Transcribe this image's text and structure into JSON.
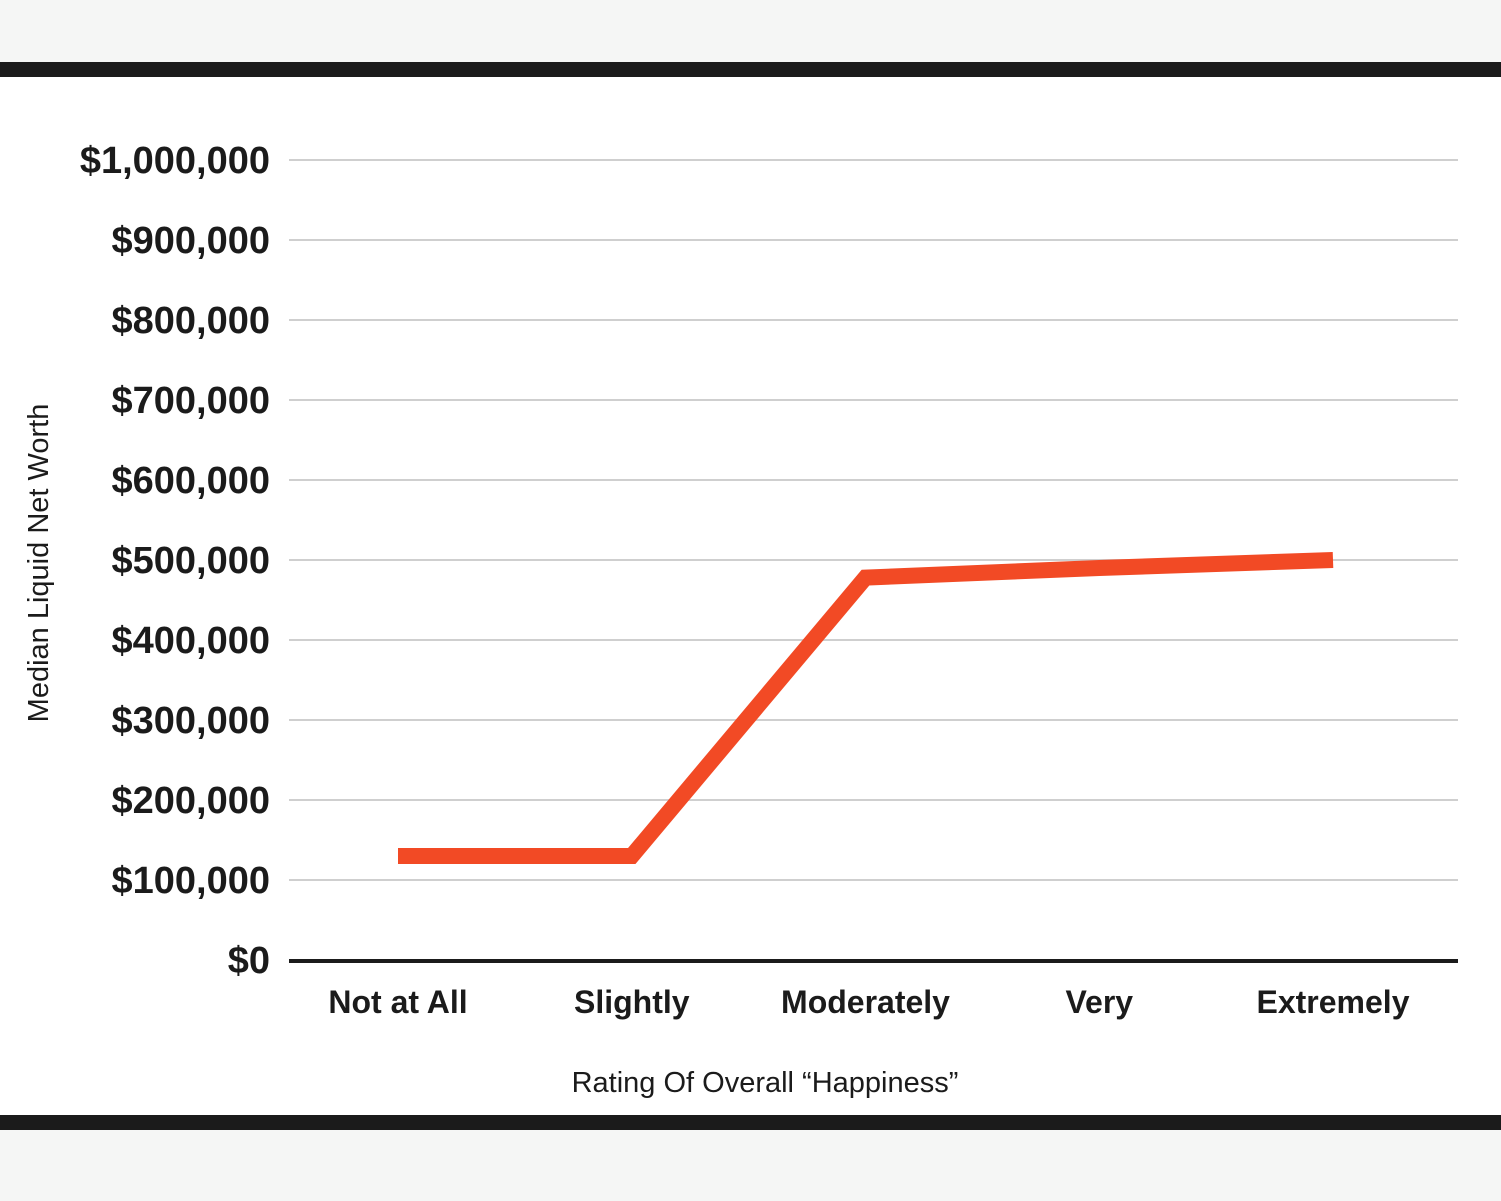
{
  "chart_data": {
    "type": "line",
    "title": "",
    "xlabel": "Rating Of Overall “Happiness”",
    "ylabel": "Median Liquid Net Worth",
    "categories": [
      "Not at All",
      "Slightly",
      "Moderately",
      "Very",
      "Extremely"
    ],
    "series": [
      {
        "values": [
          130000,
          130000,
          478000,
          490000,
          500000
        ]
      }
    ],
    "ylim": [
      0,
      1000000
    ],
    "yticks": [
      0,
      100000,
      200000,
      300000,
      400000,
      500000,
      600000,
      700000,
      800000,
      900000,
      1000000
    ],
    "ytick_labels": [
      "$0",
      "$100,000",
      "$200,000",
      "$300,000",
      "$400,000",
      "$500,000",
      "$600,000",
      "$700,000",
      "$800,000",
      "$900,000",
      "$1,000,000"
    ],
    "grid": true,
    "legend": "none",
    "colors": {
      "line": "#f24a25",
      "grid": "#cfcfcf",
      "axis": "#1b1b1b",
      "text": "#1b1b1b"
    }
  }
}
